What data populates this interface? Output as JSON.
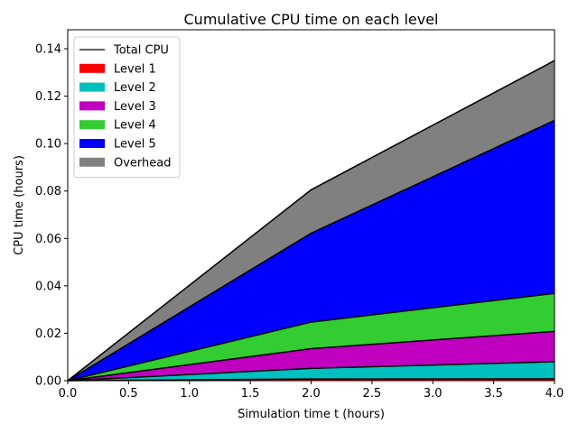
{
  "chart_data": {
    "type": "area",
    "title": "Cumulative CPU time on each level",
    "xlabel": "Simulation time t (hours)",
    "ylabel": "CPU time (hours)",
    "x": [
      0.0,
      2.0,
      4.0
    ],
    "xlim": [
      0.0,
      4.0
    ],
    "ylim": [
      0.0,
      0.148
    ],
    "xticks": [
      "0.0",
      "0.5",
      "1.0",
      "1.5",
      "2.0",
      "2.5",
      "3.0",
      "3.5",
      "4.0"
    ],
    "yticks": [
      "0.00",
      "0.02",
      "0.04",
      "0.06",
      "0.08",
      "0.10",
      "0.12",
      "0.14"
    ],
    "stacked": true,
    "series": [
      {
        "name": "Level 1",
        "color": "#ff0000",
        "values": [
          0.0,
          0.0007,
          0.0008
        ]
      },
      {
        "name": "Level 2",
        "color": "#00bfbf",
        "values": [
          0.0,
          0.0045,
          0.0072
        ]
      },
      {
        "name": "Level 3",
        "color": "#bf00bf",
        "values": [
          0.0,
          0.0083,
          0.0128
        ]
      },
      {
        "name": "Level 4",
        "color": "#33cc33",
        "values": [
          0.0,
          0.0112,
          0.016
        ]
      },
      {
        "name": "Level 5",
        "color": "#0000ff",
        "values": [
          0.0,
          0.0375,
          0.073
        ]
      },
      {
        "name": "Overhead",
        "color": "#808080",
        "values": [
          0.0,
          0.0183,
          0.0252
        ]
      }
    ],
    "total_line": {
      "name": "Total CPU",
      "color": "#000000",
      "values": [
        0.0,
        0.0805,
        0.135
      ]
    },
    "legend_position": "top-left",
    "grid": false
  }
}
